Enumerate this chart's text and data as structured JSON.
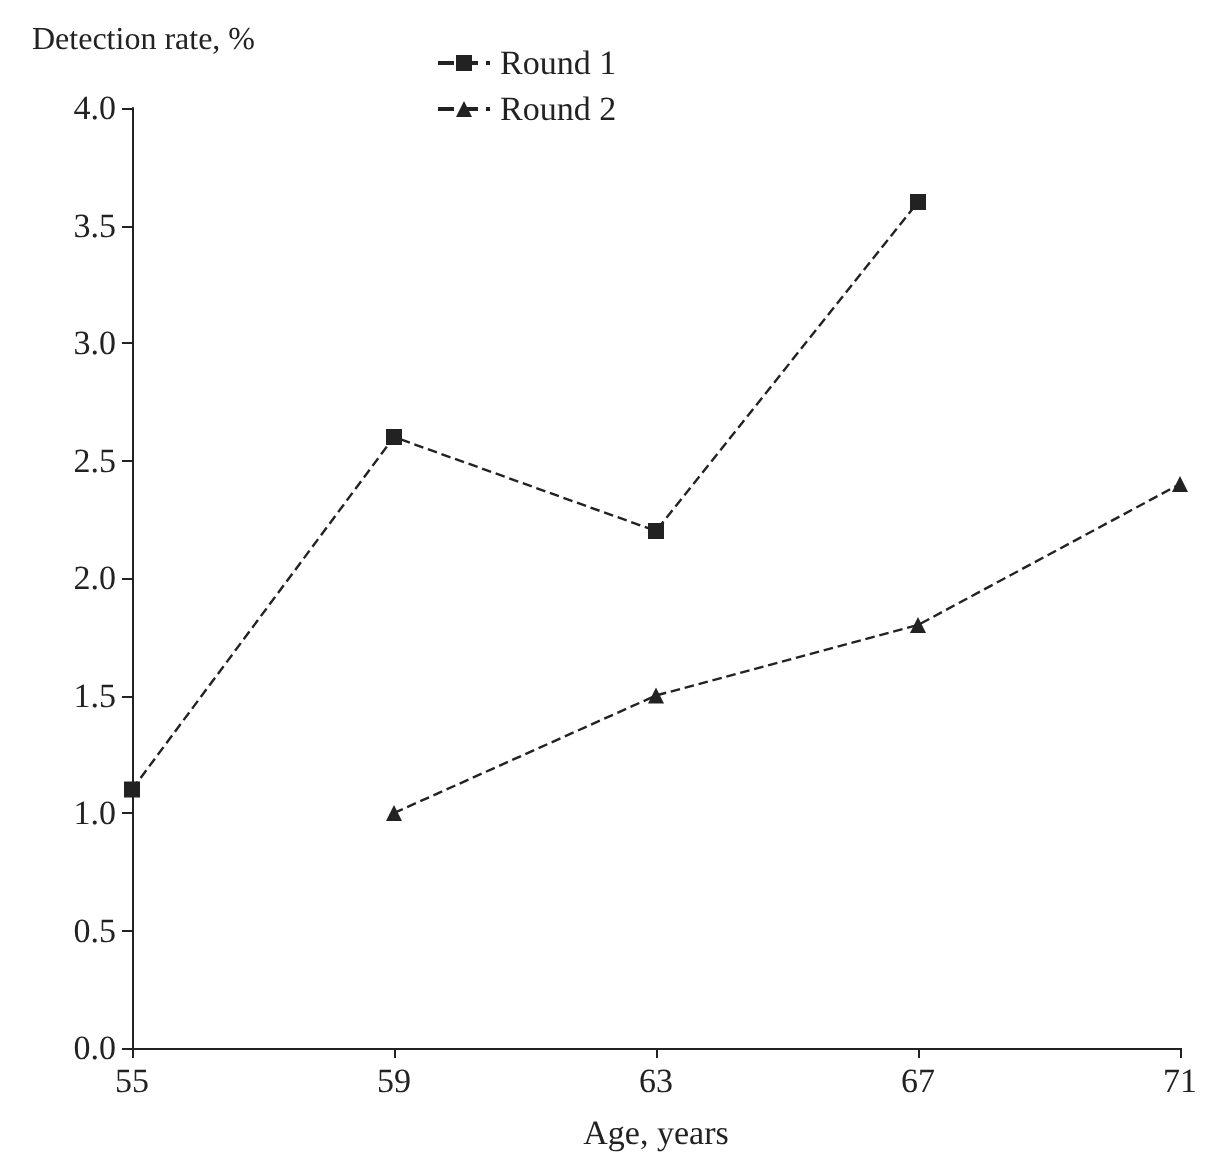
{
  "chart_data": {
    "type": "line",
    "ylabel": "Detection rate, %",
    "xlabel": "Age, years",
    "series": [
      {
        "name": "Round 1",
        "color": "#222222",
        "marker": "square",
        "x": [
          55,
          59,
          63,
          67
        ],
        "values": [
          1.1,
          2.6,
          2.2,
          3.6
        ]
      },
      {
        "name": "Round 2",
        "color": "#222222",
        "marker": "triangle",
        "x": [
          59,
          63,
          67,
          71
        ],
        "values": [
          1.0,
          1.5,
          1.8,
          2.4
        ]
      }
    ],
    "xlim": [
      55,
      71
    ],
    "xticks": [
      55,
      59,
      63,
      67,
      71
    ],
    "ylim": [
      0,
      4
    ],
    "yticks": [
      {
        "value": 0,
        "label": "0.0"
      },
      {
        "value": 0.5,
        "label": "0.5"
      },
      {
        "value": 1,
        "label": "1.0"
      },
      {
        "value": 1.5,
        "label": "1.5"
      },
      {
        "value": 2,
        "label": "2.0"
      },
      {
        "value": 2.5,
        "label": "2.5"
      },
      {
        "value": 3,
        "label": "3.0"
      },
      {
        "value": 3.5,
        "label": "3.5"
      },
      {
        "value": 4,
        "label": "4.0"
      }
    ],
    "grid": false,
    "legend": "top left",
    "line_style": "dashed"
  }
}
